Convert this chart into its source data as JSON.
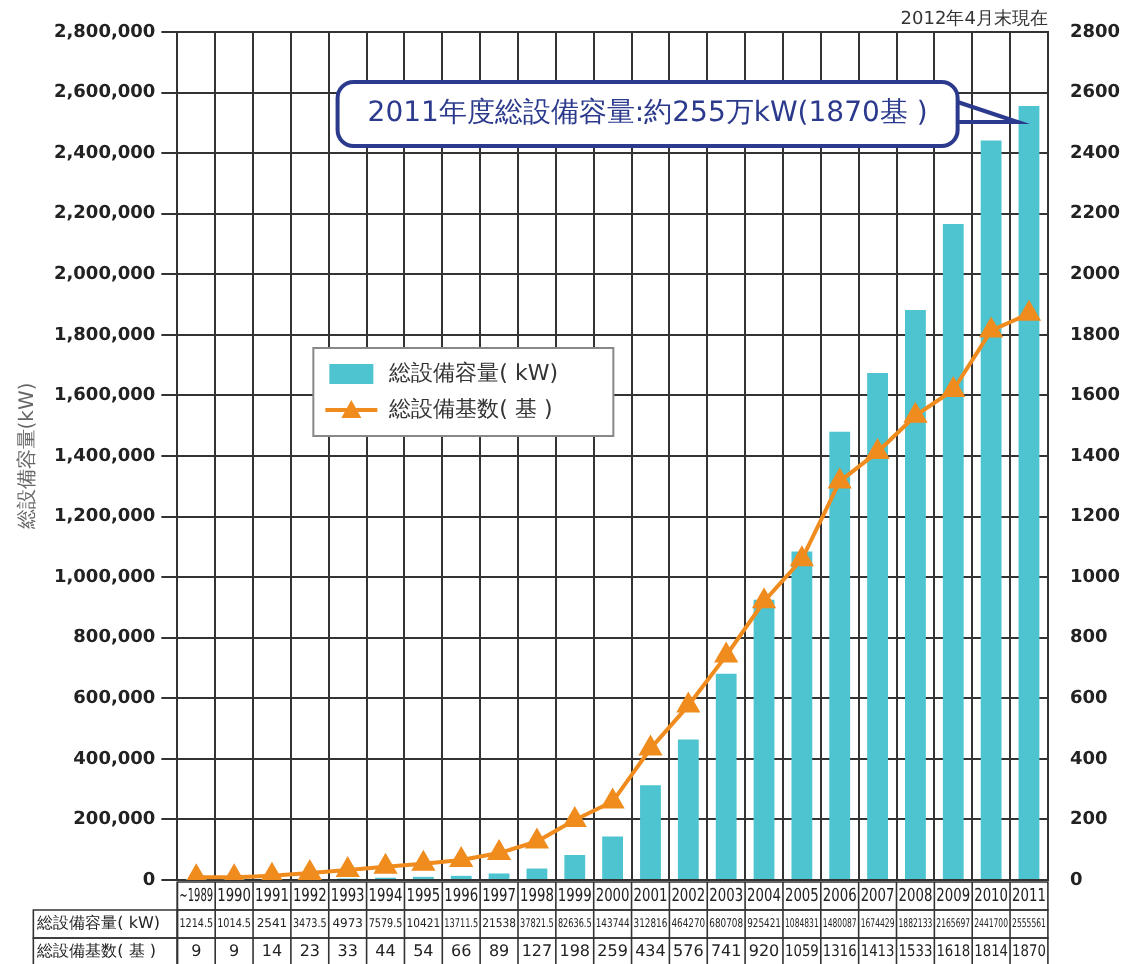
{
  "chart_data": {
    "type": "bar",
    "ylabel": "総設備容量(kW)",
    "categories": [
      "~1989",
      "1990",
      "1991",
      "1992",
      "1993",
      "1994",
      "1995",
      "1996",
      "1997",
      "1998",
      "1999",
      "2000",
      "2001",
      "2002",
      "2003",
      "2004",
      "2005",
      "2006",
      "2007",
      "2008",
      "2009",
      "2010",
      "2011"
    ],
    "series": [
      {
        "name": "総設備容量( kW)",
        "color": "#4dc4cf",
        "values": [
          1214.5,
          1014.5,
          2541,
          3473.5,
          4973,
          7579.5,
          10421,
          13711.5,
          21538,
          37821.5,
          82636.5,
          143744,
          312816,
          464270,
          680708,
          925421,
          1084831,
          1480087,
          1674429,
          1882133,
          2165697,
          2441700,
          2555561
        ]
      },
      {
        "name": "総設備基数( 基 )",
        "type": "line",
        "axis": "y2",
        "color": "#f08c1e",
        "marker": "triangle",
        "values": [
          9,
          9,
          14,
          23,
          33,
          44,
          54,
          66,
          89,
          127,
          198,
          259,
          434,
          576,
          741,
          920,
          1059,
          1316,
          1413,
          1533,
          1618,
          1814,
          1870
        ]
      }
    ],
    "ylim": [
      0,
      2800000
    ],
    "yticks": [
      0,
      {
        "value": 200000,
        "label": "200,000"
      },
      {
        "value": 400000,
        "label": "400,000"
      },
      {
        "value": 600000,
        "label": "600,000"
      },
      {
        "value": 800000,
        "label": "800,000"
      },
      {
        "value": 1000000,
        "label": "1,000,000"
      },
      {
        "value": 1200000,
        "label": "1,200,000"
      },
      {
        "value": 1400000,
        "label": "1,400,000"
      },
      {
        "value": 1600000,
        "label": "1,600,000"
      },
      {
        "value": 1800000,
        "label": "1,800,000"
      },
      {
        "value": 2000000,
        "label": "2,000,000"
      },
      {
        "value": 2200000,
        "label": "2,200,000"
      },
      {
        "value": 2400000,
        "label": "2,400,000"
      },
      {
        "value": 2600000,
        "label": "2,600,000"
      },
      {
        "value": 2800000,
        "label": "2,800,000"
      }
    ],
    "y2lim": [
      0,
      2800
    ],
    "y2ticks": [
      0,
      200,
      400,
      600,
      800,
      1000,
      1200,
      1400,
      1600,
      1800,
      2000,
      2200,
      2400,
      2600,
      2800
    ],
    "grid": true,
    "legend": "center left",
    "data_labels": true,
    "annotations": [
      "2011年度総設備容量:約255万kW(1870基 )",
      "2012年4月末現在"
    ]
  }
}
